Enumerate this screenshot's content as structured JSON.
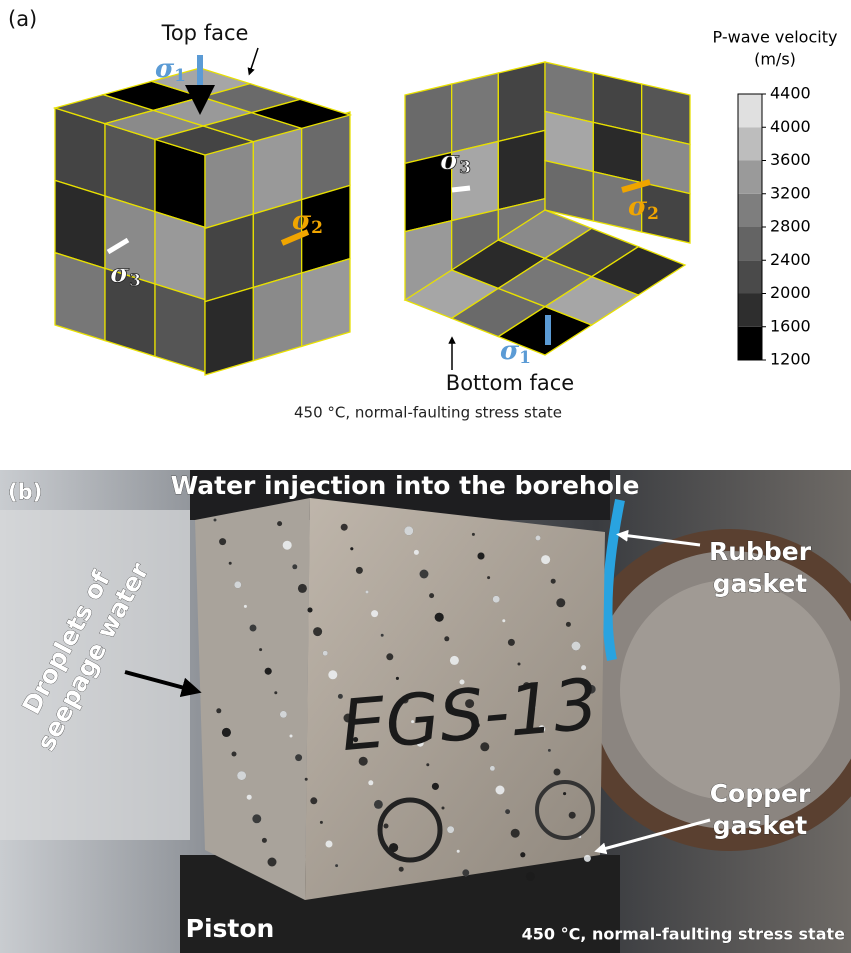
{
  "panel_a": {
    "label": "(a)",
    "top_face": "Top face",
    "bottom_face": "Bottom face",
    "sigma": "σ",
    "stress_indices": [
      "1",
      "2",
      "3"
    ],
    "caption": "450 °C, normal-faulting stress state",
    "colorbar": {
      "title": "P-wave velocity",
      "unit": "(m/s)",
      "lim": [
        1200,
        4400
      ],
      "ticks": [
        1200,
        1600,
        2000,
        2400,
        2800,
        3200,
        3600,
        4000,
        4400
      ],
      "colors": [
        "#000000",
        "#2e2e2e",
        "#4a4a4a",
        "#646464",
        "#7e7e7e",
        "#9a9a9a",
        "#bdbdbd",
        "#e0e0e0"
      ]
    }
  },
  "panel_b": {
    "label": "(b)",
    "title": "Water injection into the borehole",
    "rubber_gasket": [
      "Rubber",
      "gasket"
    ],
    "droplets": [
      "Droplets of",
      "seepage water"
    ],
    "specimen": "EGS-13",
    "copper_gasket": [
      "Copper",
      "gasket"
    ],
    "piston": "Piston",
    "caption": "450 °C, normal-faulting stress state"
  }
}
